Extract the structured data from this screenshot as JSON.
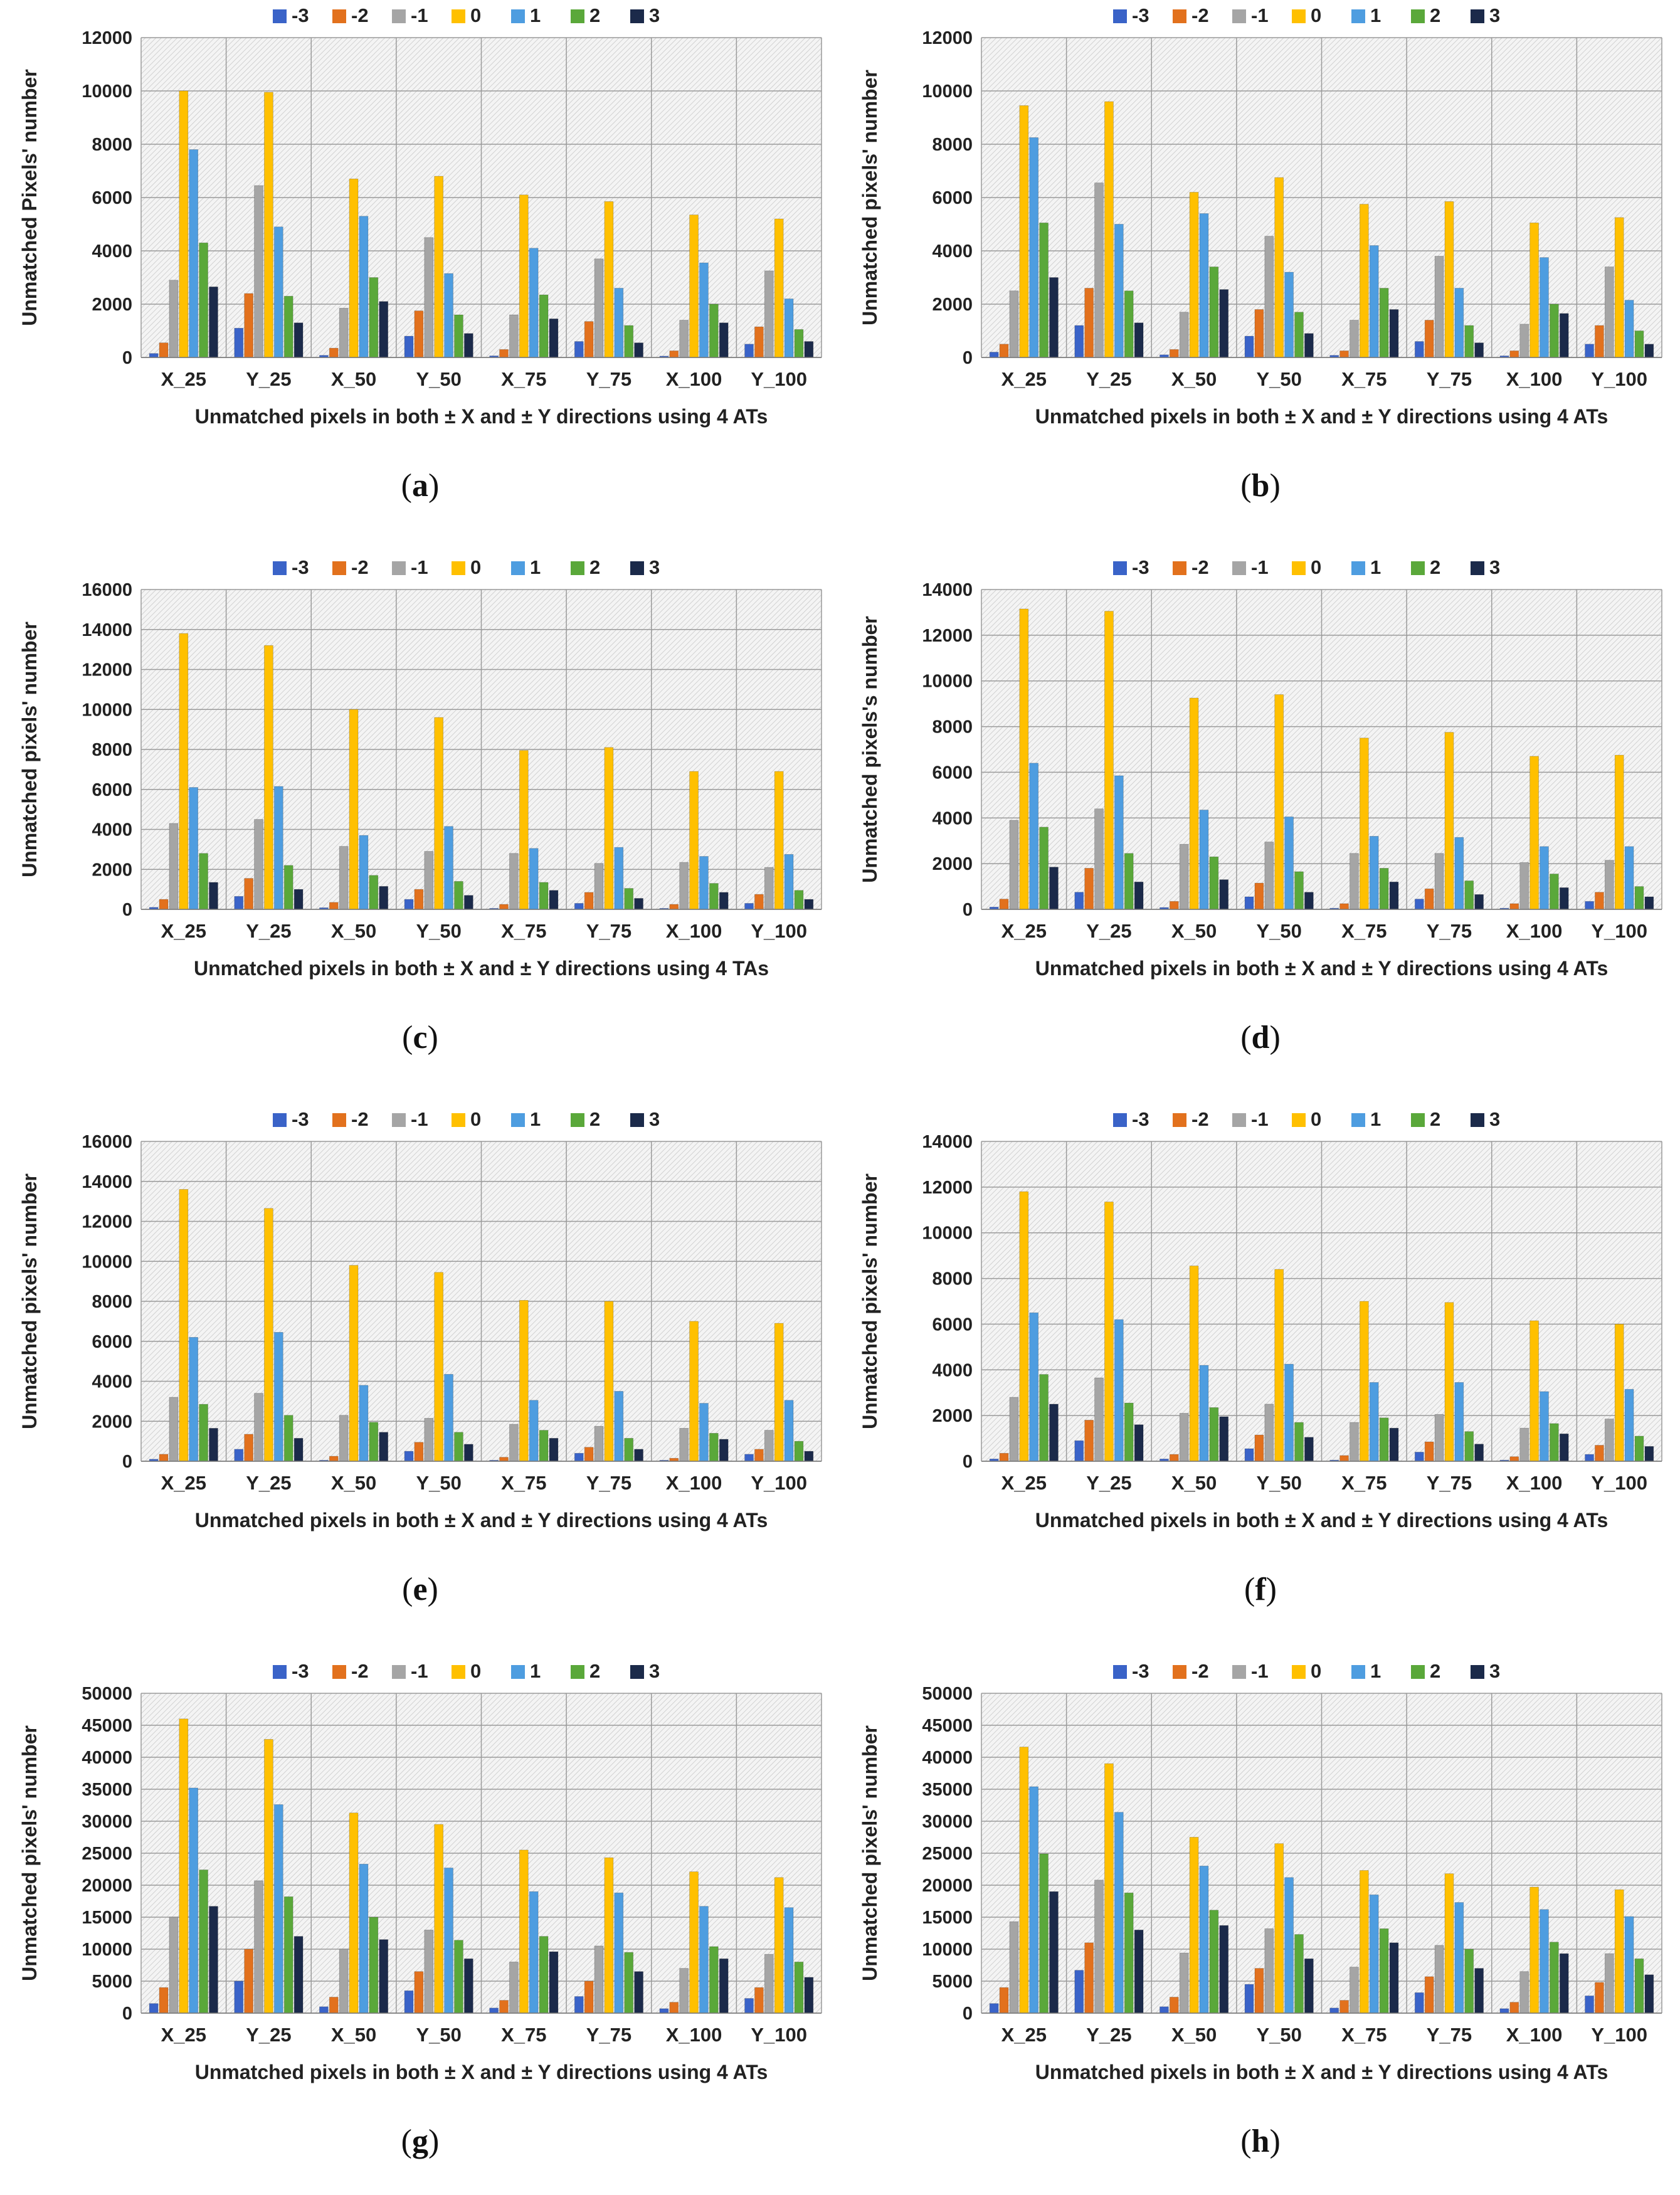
{
  "colors": {
    "series": [
      "#3a63c8",
      "#e2711d",
      "#a5a5a5",
      "#ffc000",
      "#4e9de0",
      "#5aa83a",
      "#1b2a4a"
    ],
    "grid": "#8c8c8c",
    "text": "#222222"
  },
  "legend_labels": [
    "-3",
    "-2",
    "-1",
    "0",
    "1",
    "2",
    "3"
  ],
  "categories": [
    "X_25",
    "Y_25",
    "X_50",
    "Y_50",
    "X_75",
    "Y_75",
    "X_100",
    "Y_100"
  ],
  "chart_data": [
    {
      "type": "bar",
      "caption": "a",
      "title": "",
      "xlabel": "Unmatched pixels in both ± X and ± Y directions using 4 ATs",
      "ylabel": "Unmatched Pixels' number",
      "ylim": [
        0,
        12000
      ],
      "yticks": [
        "0",
        "2000",
        "4000",
        "6000",
        "8000",
        "10000",
        "12000"
      ],
      "legend": "top",
      "series": [
        {
          "name": "-3",
          "values": [
            150,
            1100,
            80,
            800,
            60,
            600,
            50,
            500
          ]
        },
        {
          "name": "-2",
          "values": [
            550,
            2400,
            350,
            1750,
            300,
            1350,
            250,
            1150
          ]
        },
        {
          "name": "-1",
          "values": [
            2900,
            6450,
            1850,
            4500,
            1600,
            3700,
            1400,
            3250
          ]
        },
        {
          "name": "0",
          "values": [
            10000,
            9950,
            6700,
            6800,
            6100,
            5850,
            5350,
            5200
          ]
        },
        {
          "name": "1",
          "values": [
            7800,
            4900,
            5300,
            3150,
            4100,
            2600,
            3550,
            2200
          ]
        },
        {
          "name": "2",
          "values": [
            4300,
            2300,
            3000,
            1600,
            2350,
            1200,
            2000,
            1050
          ]
        },
        {
          "name": "3",
          "values": [
            2650,
            1300,
            2100,
            900,
            1450,
            550,
            1300,
            600
          ]
        }
      ]
    },
    {
      "type": "bar",
      "caption": "b",
      "title": "",
      "xlabel": "Unmatched pixels in both ± X and ± Y directions using 4 ATs",
      "ylabel": "Unmatched pixels' number",
      "ylim": [
        0,
        12000
      ],
      "yticks": [
        "0",
        "2000",
        "4000",
        "6000",
        "8000",
        "10000",
        "12000"
      ],
      "legend": "top",
      "series": [
        {
          "name": "-3",
          "values": [
            200,
            1200,
            100,
            800,
            80,
            600,
            60,
            500
          ]
        },
        {
          "name": "-2",
          "values": [
            500,
            2600,
            300,
            1800,
            250,
            1400,
            250,
            1200
          ]
        },
        {
          "name": "-1",
          "values": [
            2500,
            6550,
            1700,
            4550,
            1400,
            3800,
            1250,
            3400
          ]
        },
        {
          "name": "0",
          "values": [
            9450,
            9600,
            6200,
            6750,
            5750,
            5850,
            5050,
            5250
          ]
        },
        {
          "name": "1",
          "values": [
            8250,
            5000,
            5400,
            3200,
            4200,
            2600,
            3750,
            2150
          ]
        },
        {
          "name": "2",
          "values": [
            5050,
            2500,
            3400,
            1700,
            2600,
            1200,
            2000,
            1000
          ]
        },
        {
          "name": "3",
          "values": [
            3000,
            1300,
            2550,
            900,
            1800,
            550,
            1650,
            500
          ]
        }
      ]
    },
    {
      "type": "bar",
      "caption": "c",
      "title": "",
      "xlabel": "Unmatched pixels in both ± X and ± Y directions using 4 TAs",
      "ylabel": "Unmatched pixels' number",
      "ylim": [
        0,
        16000
      ],
      "yticks": [
        "0",
        "2000",
        "4000",
        "6000",
        "8000",
        "10000",
        "12000",
        "14000",
        "16000"
      ],
      "legend": "top",
      "series": [
        {
          "name": "-3",
          "values": [
            100,
            650,
            80,
            500,
            50,
            300,
            50,
            300
          ]
        },
        {
          "name": "-2",
          "values": [
            500,
            1550,
            350,
            1000,
            250,
            850,
            250,
            750
          ]
        },
        {
          "name": "-1",
          "values": [
            4300,
            4500,
            3150,
            2900,
            2800,
            2300,
            2350,
            2100
          ]
        },
        {
          "name": "0",
          "values": [
            13800,
            13200,
            10000,
            9600,
            7950,
            8100,
            6900,
            6900
          ]
        },
        {
          "name": "1",
          "values": [
            6100,
            6150,
            3700,
            4150,
            3050,
            3100,
            2650,
            2750
          ]
        },
        {
          "name": "2",
          "values": [
            2800,
            2200,
            1700,
            1400,
            1350,
            1050,
            1300,
            950
          ]
        },
        {
          "name": "3",
          "values": [
            1350,
            1000,
            1150,
            700,
            950,
            550,
            850,
            500
          ]
        }
      ]
    },
    {
      "type": "bar",
      "caption": "d",
      "title": "",
      "xlabel": "Unmatched pixels in both ± X and ± Y directions using 4 ATs",
      "ylabel": "Unmatched pixels's number",
      "ylim": [
        0,
        14000
      ],
      "yticks": [
        "0",
        "2000",
        "4000",
        "6000",
        "8000",
        "10000",
        "12000",
        "14000"
      ],
      "legend": "top",
      "series": [
        {
          "name": "-3",
          "values": [
            100,
            750,
            80,
            550,
            50,
            450,
            50,
            350
          ]
        },
        {
          "name": "-2",
          "values": [
            450,
            1800,
            350,
            1150,
            250,
            900,
            250,
            750
          ]
        },
        {
          "name": "-1",
          "values": [
            3900,
            4400,
            2850,
            2950,
            2450,
            2450,
            2050,
            2150
          ]
        },
        {
          "name": "0",
          "values": [
            13150,
            13050,
            9250,
            9400,
            7500,
            7750,
            6700,
            6750
          ]
        },
        {
          "name": "1",
          "values": [
            6400,
            5850,
            4350,
            4050,
            3200,
            3150,
            2750,
            2750
          ]
        },
        {
          "name": "2",
          "values": [
            3600,
            2450,
            2300,
            1650,
            1800,
            1250,
            1550,
            1000
          ]
        },
        {
          "name": "3",
          "values": [
            1850,
            1200,
            1300,
            750,
            1200,
            650,
            950,
            550
          ]
        }
      ]
    },
    {
      "type": "bar",
      "caption": "e",
      "title": "",
      "xlabel": "Unmatched pixels in  both ± X and ± Y directions using 4 ATs",
      "ylabel": "Unmatched pixels' number",
      "ylim": [
        0,
        16000
      ],
      "yticks": [
        "0",
        "2000",
        "4000",
        "6000",
        "8000",
        "10000",
        "12000",
        "14000",
        "16000"
      ],
      "legend": "top",
      "series": [
        {
          "name": "-3",
          "values": [
            100,
            600,
            50,
            500,
            50,
            400,
            50,
            350
          ]
        },
        {
          "name": "-2",
          "values": [
            350,
            1350,
            250,
            950,
            200,
            700,
            150,
            600
          ]
        },
        {
          "name": "-1",
          "values": [
            3200,
            3400,
            2300,
            2150,
            1850,
            1750,
            1650,
            1550
          ]
        },
        {
          "name": "0",
          "values": [
            13600,
            12650,
            9800,
            9450,
            8050,
            8000,
            7000,
            6900
          ]
        },
        {
          "name": "1",
          "values": [
            6200,
            6450,
            3800,
            4350,
            3050,
            3500,
            2900,
            3050
          ]
        },
        {
          "name": "2",
          "values": [
            2850,
            2300,
            1950,
            1450,
            1550,
            1150,
            1400,
            1000
          ]
        },
        {
          "name": "3",
          "values": [
            1650,
            1150,
            1450,
            850,
            1150,
            600,
            1100,
            500
          ]
        }
      ]
    },
    {
      "type": "bar",
      "caption": "f",
      "title": "",
      "xlabel": "Unmatched pixels in both ± X and ± Y directions using 4 ATs",
      "ylabel": "Unmatched pixels' number",
      "ylim": [
        0,
        14000
      ],
      "yticks": [
        "0",
        "2000",
        "4000",
        "6000",
        "8000",
        "10000",
        "12000",
        "14000"
      ],
      "legend": "top",
      "series": [
        {
          "name": "-3",
          "values": [
            100,
            900,
            100,
            550,
            50,
            400,
            50,
            300
          ]
        },
        {
          "name": "-2",
          "values": [
            350,
            1800,
            300,
            1150,
            250,
            850,
            200,
            700
          ]
        },
        {
          "name": "-1",
          "values": [
            2800,
            3650,
            2100,
            2500,
            1700,
            2050,
            1450,
            1850
          ]
        },
        {
          "name": "0",
          "values": [
            11800,
            11350,
            8550,
            8400,
            7000,
            6950,
            6150,
            6000
          ]
        },
        {
          "name": "1",
          "values": [
            6500,
            6200,
            4200,
            4250,
            3450,
            3450,
            3050,
            3150
          ]
        },
        {
          "name": "2",
          "values": [
            3800,
            2550,
            2350,
            1700,
            1900,
            1300,
            1650,
            1100
          ]
        },
        {
          "name": "3",
          "values": [
            2500,
            1600,
            1950,
            1050,
            1450,
            750,
            1200,
            650
          ]
        }
      ]
    },
    {
      "type": "bar",
      "caption": "g",
      "title": "",
      "xlabel": "Unmatched pixels in both ± X and ± Y directions using 4 ATs",
      "ylabel": "Unmatched pixels' number",
      "ylim": [
        0,
        50000
      ],
      "yticks": [
        "0",
        "5000",
        "10000",
        "15000",
        "20000",
        "25000",
        "30000",
        "35000",
        "40000",
        "45000",
        "50000"
      ],
      "legend": "top",
      "series": [
        {
          "name": "-3",
          "values": [
            1500,
            5000,
            1000,
            3500,
            800,
            2600,
            700,
            2300
          ]
        },
        {
          "name": "-2",
          "values": [
            4000,
            10000,
            2500,
            6500,
            2000,
            5000,
            1700,
            4000
          ]
        },
        {
          "name": "-1",
          "values": [
            15000,
            20700,
            10000,
            13000,
            8000,
            10500,
            7000,
            9200
          ]
        },
        {
          "name": "0",
          "values": [
            46000,
            42800,
            31300,
            29500,
            25500,
            24300,
            22100,
            21200
          ]
        },
        {
          "name": "1",
          "values": [
            35200,
            32600,
            23300,
            22700,
            19000,
            18800,
            16700,
            16500
          ]
        },
        {
          "name": "2",
          "values": [
            22400,
            18200,
            15000,
            11400,
            12000,
            9500,
            10400,
            8000
          ]
        },
        {
          "name": "3",
          "values": [
            16700,
            12000,
            11500,
            8500,
            9600,
            6500,
            8500,
            5600
          ]
        }
      ]
    },
    {
      "type": "bar",
      "caption": "h",
      "title": "",
      "xlabel": "Unmatched pixels in both ± X and ± Y directions using 4 ATs",
      "ylabel": "Unmatched pixels' number",
      "ylim": [
        0,
        50000
      ],
      "yticks": [
        "0",
        "5000",
        "10000",
        "15000",
        "20000",
        "25000",
        "30000",
        "35000",
        "40000",
        "45000",
        "50000"
      ],
      "legend": "top",
      "series": [
        {
          "name": "-3",
          "values": [
            1500,
            6700,
            1000,
            4500,
            800,
            3200,
            700,
            2700
          ]
        },
        {
          "name": "-2",
          "values": [
            4000,
            11000,
            2500,
            7000,
            2000,
            5700,
            1700,
            4800
          ]
        },
        {
          "name": "-1",
          "values": [
            14300,
            20800,
            9400,
            13200,
            7200,
            10600,
            6500,
            9300
          ]
        },
        {
          "name": "0",
          "values": [
            41600,
            39000,
            27500,
            26500,
            22300,
            21800,
            19700,
            19300
          ]
        },
        {
          "name": "1",
          "values": [
            35400,
            31400,
            23000,
            21200,
            18500,
            17300,
            16200,
            15100
          ]
        },
        {
          "name": "2",
          "values": [
            24900,
            18800,
            16100,
            12300,
            13200,
            10000,
            11100,
            8500
          ]
        },
        {
          "name": "3",
          "values": [
            19000,
            13000,
            13700,
            8500,
            11000,
            7000,
            9300,
            6000
          ]
        }
      ]
    }
  ]
}
